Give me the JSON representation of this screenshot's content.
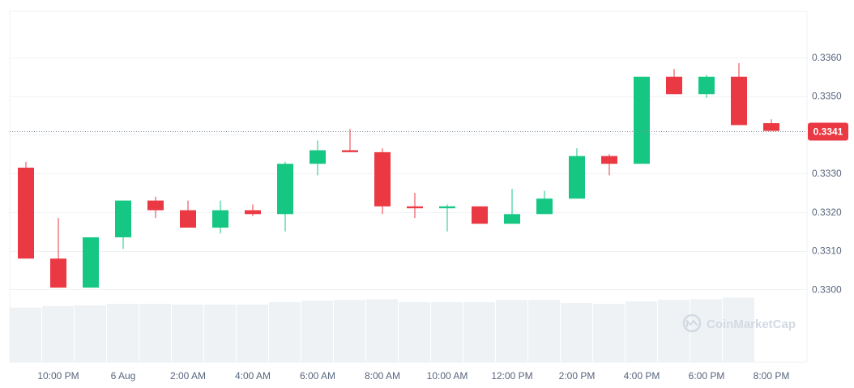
{
  "chart_data": {
    "type": "candlestick",
    "x_tick_labels": [
      "10:00 PM",
      "6 Aug",
      "2:00 AM",
      "4:00 AM",
      "6:00 AM",
      "8:00 AM",
      "10:00 AM",
      "12:00 PM",
      "2:00 PM",
      "4:00 PM",
      "6:00 PM",
      "8:00 PM"
    ],
    "y_tick_labels": [
      "0.3300",
      "0.3310",
      "0.3320",
      "0.3330",
      "0.3350",
      "0.3360"
    ],
    "y_tick_values": [
      0.33,
      0.331,
      0.332,
      0.333,
      0.335,
      0.336
    ],
    "ylim": [
      0.3289,
      0.33719
    ],
    "last_price": "0.3341",
    "last_price_value": 0.3341,
    "watermark": "CoinMarketCap",
    "up_color": "#16c784",
    "down_color": "#ea3943",
    "volume_color": "#eff2f5",
    "candles": [
      {
        "o": 0.33315,
        "h": 0.3333,
        "l": 0.3308,
        "c": 0.3308
      },
      {
        "o": 0.3308,
        "h": 0.33185,
        "l": 0.33005,
        "c": 0.33005
      },
      {
        "o": 0.33005,
        "h": 0.33135,
        "l": 0.33005,
        "c": 0.33135
      },
      {
        "o": 0.33135,
        "h": 0.3323,
        "l": 0.33105,
        "c": 0.3323
      },
      {
        "o": 0.3323,
        "h": 0.3324,
        "l": 0.33185,
        "c": 0.33205
      },
      {
        "o": 0.33205,
        "h": 0.3323,
        "l": 0.3316,
        "c": 0.3316
      },
      {
        "o": 0.3316,
        "h": 0.3323,
        "l": 0.33145,
        "c": 0.33205
      },
      {
        "o": 0.33205,
        "h": 0.3322,
        "l": 0.3319,
        "c": 0.33195
      },
      {
        "o": 0.33195,
        "h": 0.3333,
        "l": 0.3315,
        "c": 0.33325
      },
      {
        "o": 0.33325,
        "h": 0.33385,
        "l": 0.33295,
        "c": 0.3336
      },
      {
        "o": 0.3336,
        "h": 0.33415,
        "l": 0.33355,
        "c": 0.33355
      },
      {
        "o": 0.33355,
        "h": 0.33365,
        "l": 0.33195,
        "c": 0.33215
      },
      {
        "o": 0.33215,
        "h": 0.3325,
        "l": 0.33185,
        "c": 0.3321
      },
      {
        "o": 0.3321,
        "h": 0.3322,
        "l": 0.3315,
        "c": 0.33215
      },
      {
        "o": 0.33215,
        "h": 0.33215,
        "l": 0.3317,
        "c": 0.3317
      },
      {
        "o": 0.3317,
        "h": 0.3326,
        "l": 0.3317,
        "c": 0.33195
      },
      {
        "o": 0.33195,
        "h": 0.33255,
        "l": 0.33195,
        "c": 0.33235
      },
      {
        "o": 0.33235,
        "h": 0.33365,
        "l": 0.33235,
        "c": 0.33345
      },
      {
        "o": 0.33345,
        "h": 0.3335,
        "l": 0.33295,
        "c": 0.33325
      },
      {
        "o": 0.33325,
        "h": 0.3355,
        "l": 0.33325,
        "c": 0.3355
      },
      {
        "o": 0.3355,
        "h": 0.3357,
        "l": 0.33505,
        "c": 0.33505
      },
      {
        "o": 0.33505,
        "h": 0.33555,
        "l": 0.33495,
        "c": 0.3355
      },
      {
        "o": 0.3355,
        "h": 0.33585,
        "l": 0.33425,
        "c": 0.33425
      },
      {
        "o": 0.3343,
        "h": 0.3344,
        "l": 0.3341,
        "c": 0.3341
      }
    ],
    "volume_relative": [
      0.7,
      0.72,
      0.73,
      0.75,
      0.75,
      0.74,
      0.74,
      0.74,
      0.77,
      0.79,
      0.8,
      0.81,
      0.77,
      0.77,
      0.77,
      0.8,
      0.8,
      0.76,
      0.75,
      0.78,
      0.8,
      0.81,
      0.83
    ]
  }
}
